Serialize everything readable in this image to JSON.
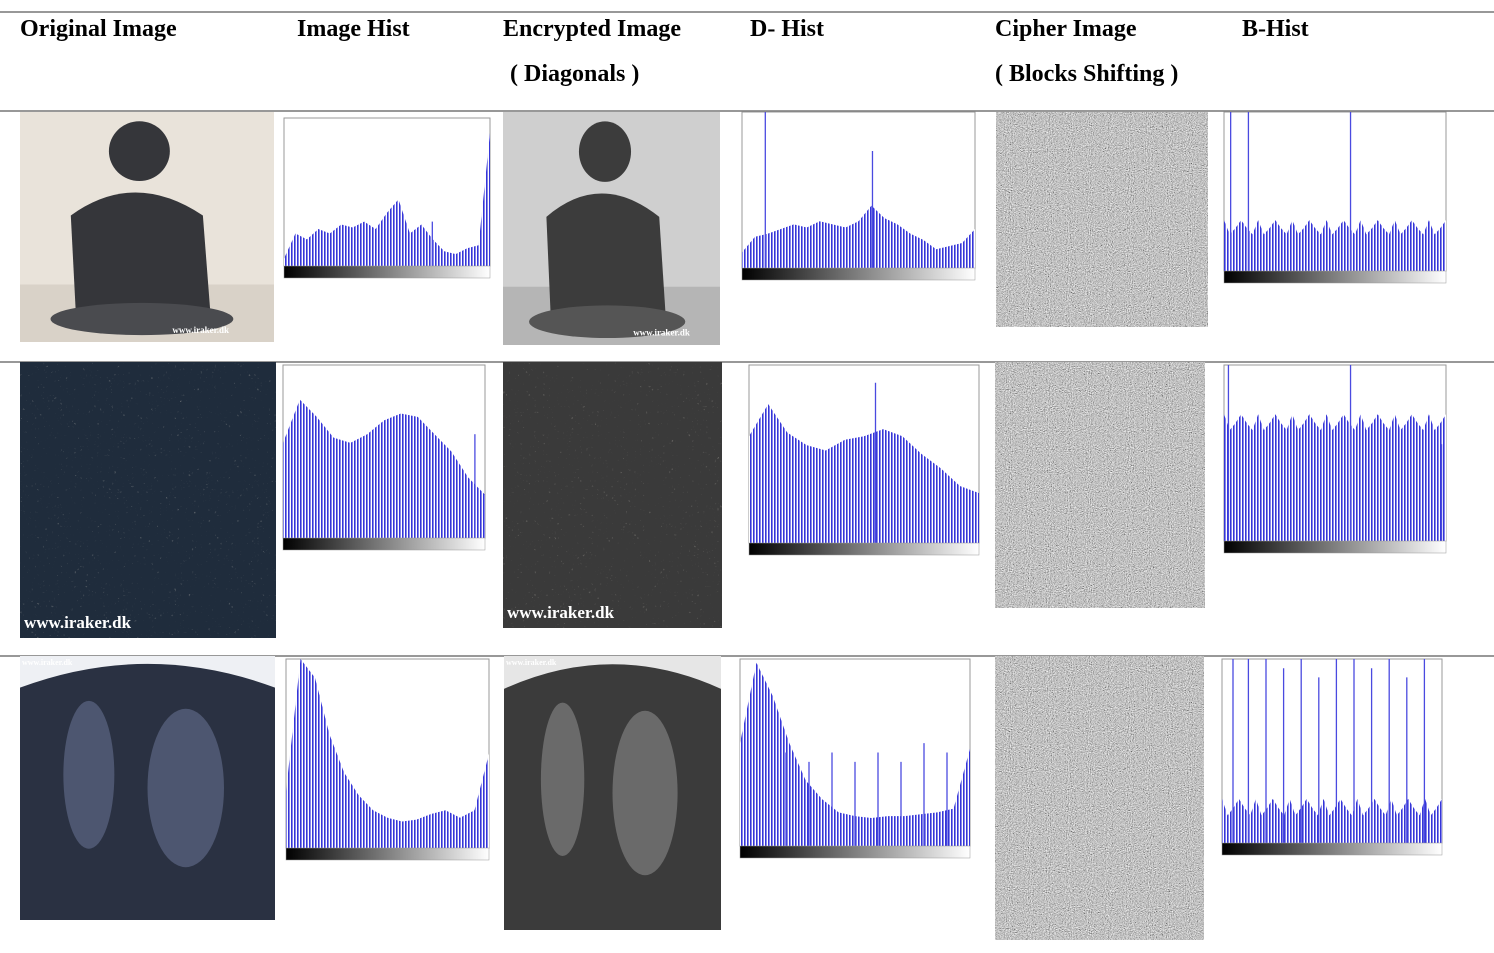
{
  "header": {
    "columns": [
      "Original Image",
      "Image Hist",
      "Encrypted Image",
      "D- Hist",
      "Cipher Image",
      "B-Hist"
    ],
    "notes": [
      "( Diagonals )",
      "( Blocks Shifting )"
    ]
  },
  "watermark": "www.iraker.dk"
}
